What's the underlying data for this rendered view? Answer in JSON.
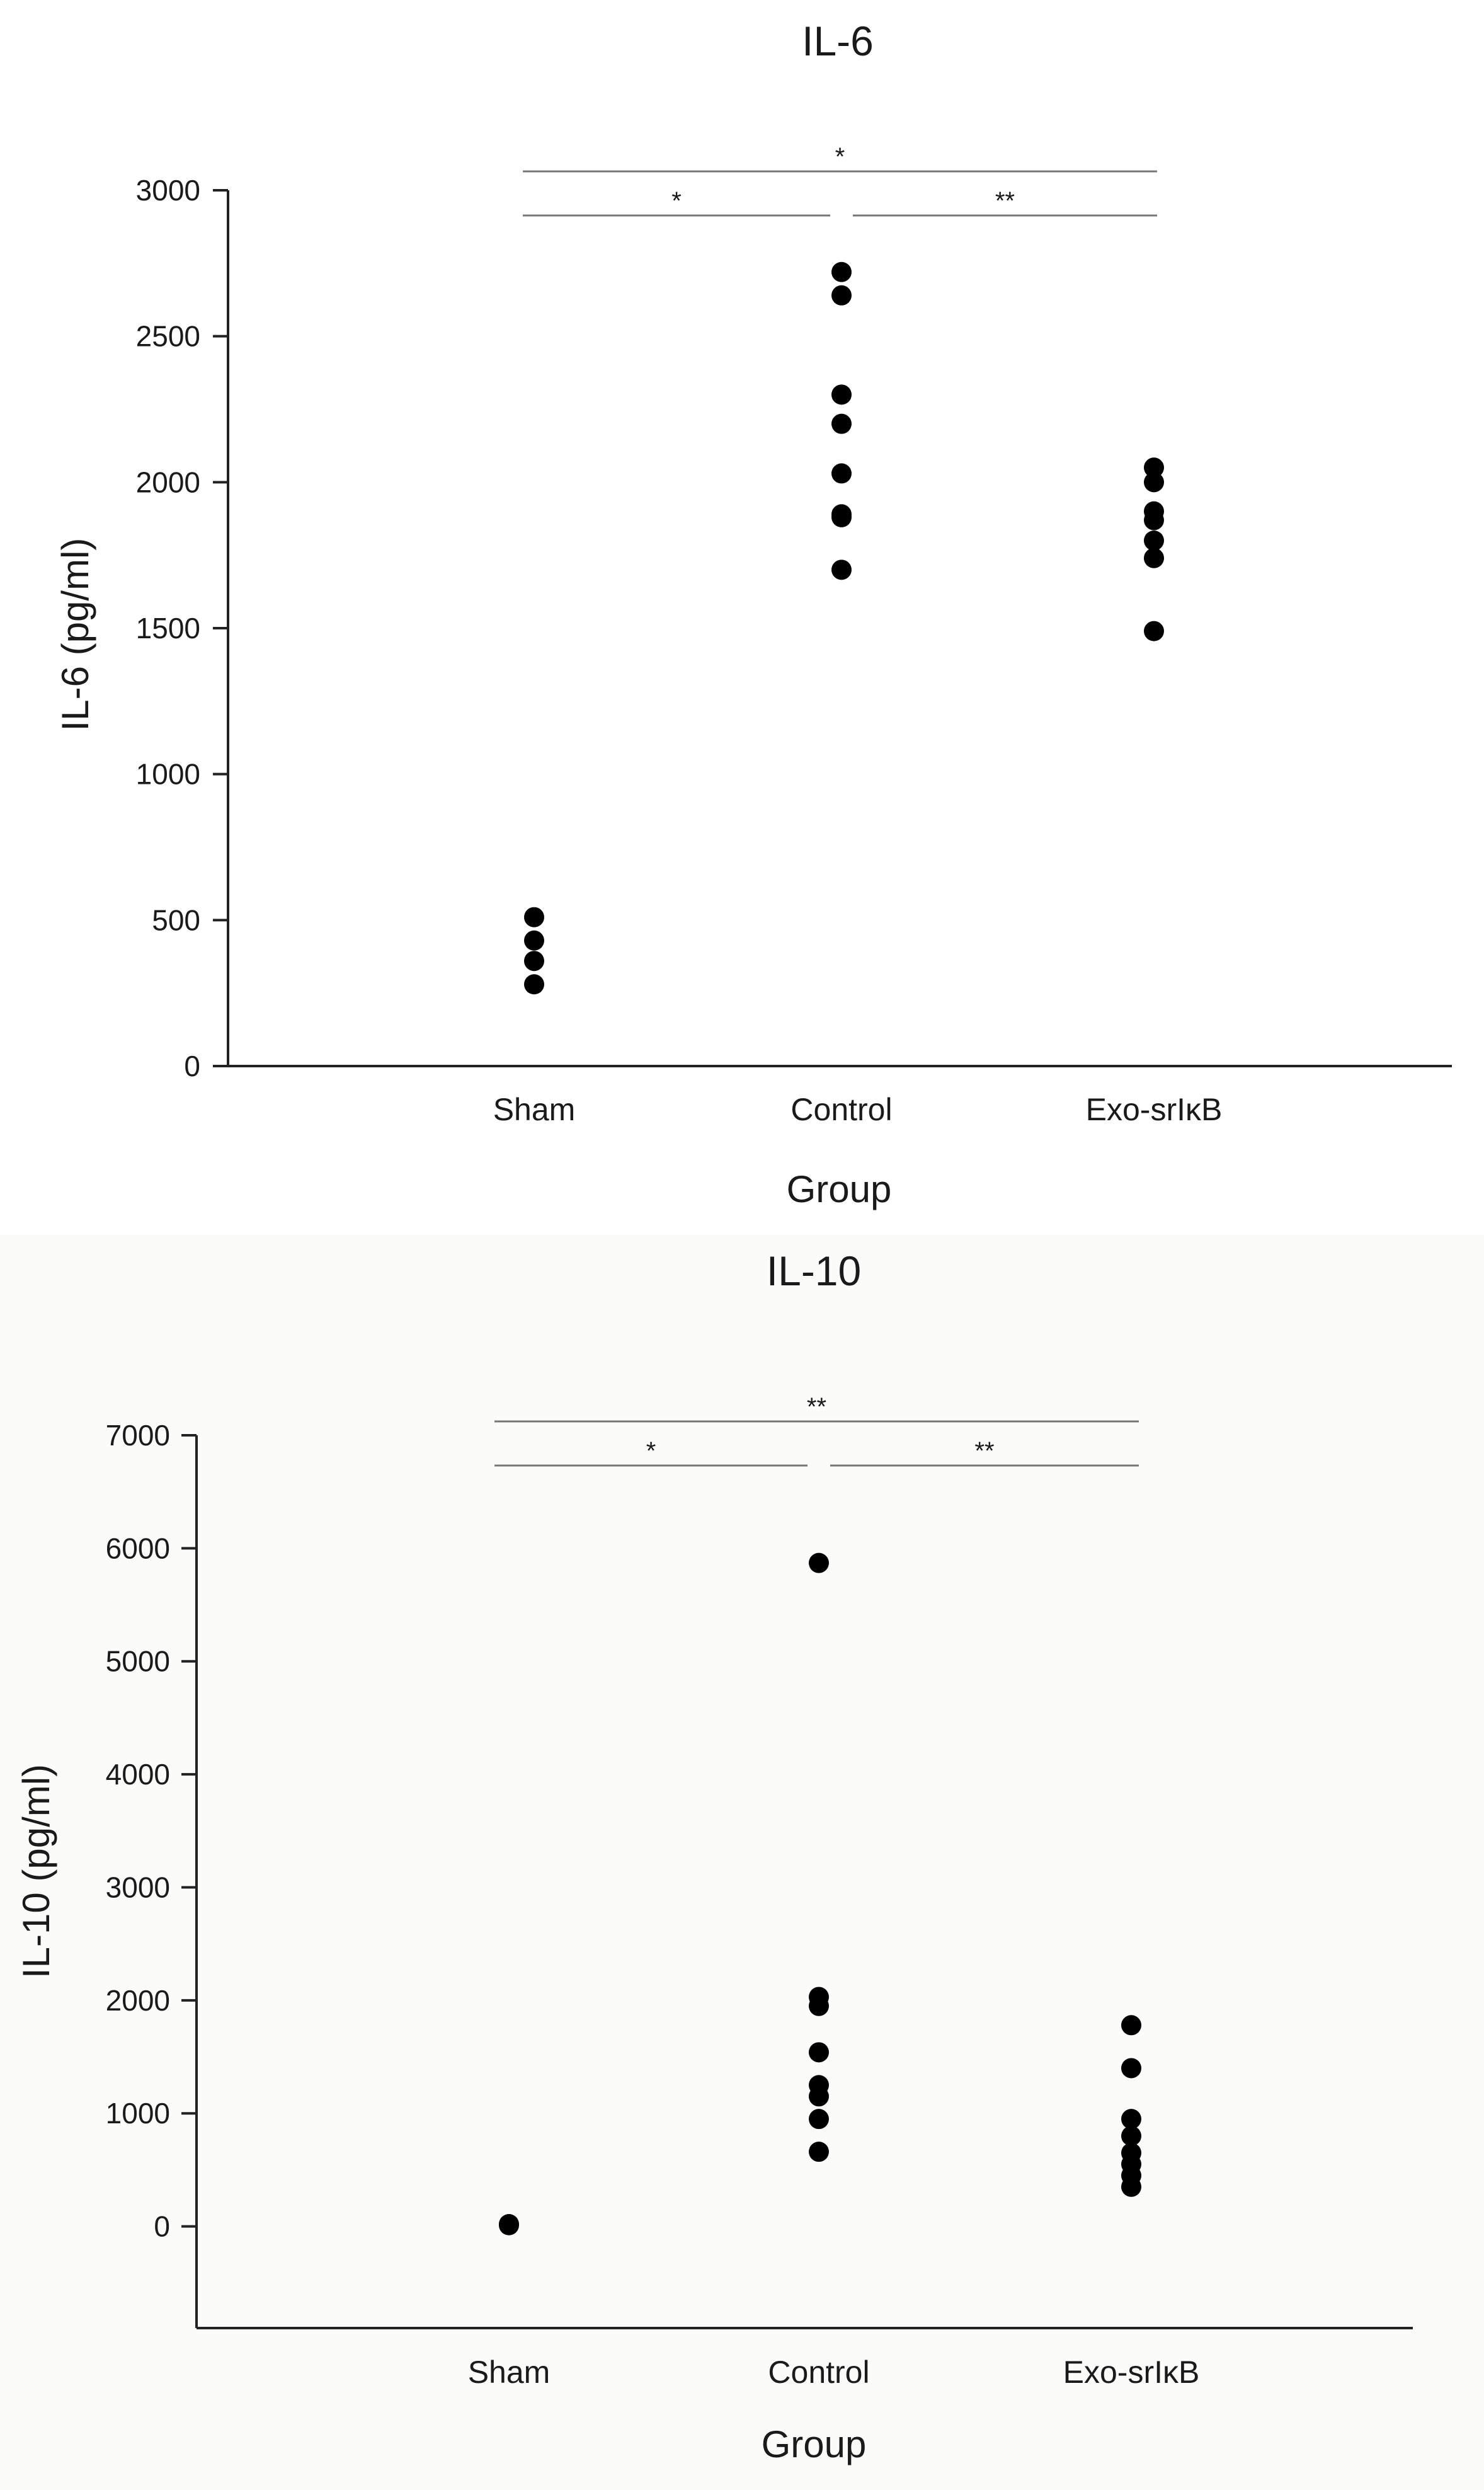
{
  "figure": {
    "panels": [
      {
        "title": "IL-6",
        "xlabel": "Group",
        "ylabel": "IL-6 (pg/ml)"
      },
      {
        "title": "IL-10",
        "xlabel": "Group",
        "ylabel": "IL-10 (pg/ml)"
      }
    ]
  },
  "chart_data": [
    {
      "type": "scatter",
      "title": "IL-6",
      "xlabel": "Group",
      "ylabel": "IL-6 (pg/ml)",
      "categories": [
        "Sham",
        "Control",
        "Exo-srIκB"
      ],
      "ylim": [
        0,
        3000
      ],
      "yticks": [
        0,
        500,
        1000,
        1500,
        2000,
        2500,
        3000
      ],
      "grid": false,
      "series": [
        {
          "values": [
            [
              280,
              360,
              430,
              510
            ],
            [
              1700,
              1880,
              1890,
              2030,
              2200,
              2300,
              2640,
              2720
            ],
            [
              1490,
              1740,
              1800,
              1870,
              1900,
              2000,
              2050
            ]
          ]
        }
      ],
      "significance": [
        {
          "from": 0,
          "to": 1,
          "label": "*",
          "level": 1
        },
        {
          "from": 1,
          "to": 2,
          "label": "**",
          "level": 1
        },
        {
          "from": 0,
          "to": 2,
          "label": "*",
          "level": 2
        }
      ]
    },
    {
      "type": "scatter",
      "title": "IL-10",
      "xlabel": "Group",
      "ylabel": "IL-10 (pg/ml)",
      "categories": [
        "Sham",
        "Control",
        "Exo-srIκB"
      ],
      "ylim": [
        -900,
        7000
      ],
      "yticks": [
        0,
        1000,
        2000,
        3000,
        4000,
        5000,
        6000,
        7000
      ],
      "grid": false,
      "series": [
        {
          "values": [
            [
              10,
              20
            ],
            [
              660,
              950,
              1150,
              1250,
              1540,
              1950,
              2030,
              5870
            ],
            [
              350,
              450,
              550,
              650,
              800,
              950,
              1400,
              1780
            ]
          ]
        }
      ],
      "significance": [
        {
          "from": 0,
          "to": 1,
          "label": "*",
          "level": 1
        },
        {
          "from": 1,
          "to": 2,
          "label": "**",
          "level": 1
        },
        {
          "from": 0,
          "to": 2,
          "label": "**",
          "level": 2
        }
      ]
    }
  ]
}
